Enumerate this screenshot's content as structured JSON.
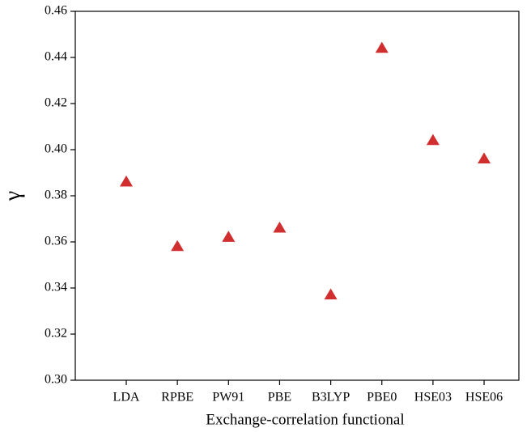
{
  "chart_data": {
    "type": "scatter",
    "x_label": "Exchange-correlation functional",
    "y_label": "γ",
    "categories": [
      "LDA",
      "RPBE",
      "PW91",
      "PBE",
      "B3LYP",
      "PBE0",
      "HSE03",
      "HSE06"
    ],
    "values": [
      0.386,
      0.358,
      0.362,
      0.366,
      0.337,
      0.444,
      0.404,
      0.396
    ],
    "color": "#d12f2f",
    "marker": "triangle",
    "ylim": [
      0.3,
      0.46
    ],
    "yticks": [
      {
        "value": 0.3,
        "label": "0.30"
      },
      0.32,
      0.34,
      0.36,
      0.38,
      {
        "value": 0.4,
        "label": "0.40"
      },
      0.42,
      0.44,
      0.46
    ]
  }
}
